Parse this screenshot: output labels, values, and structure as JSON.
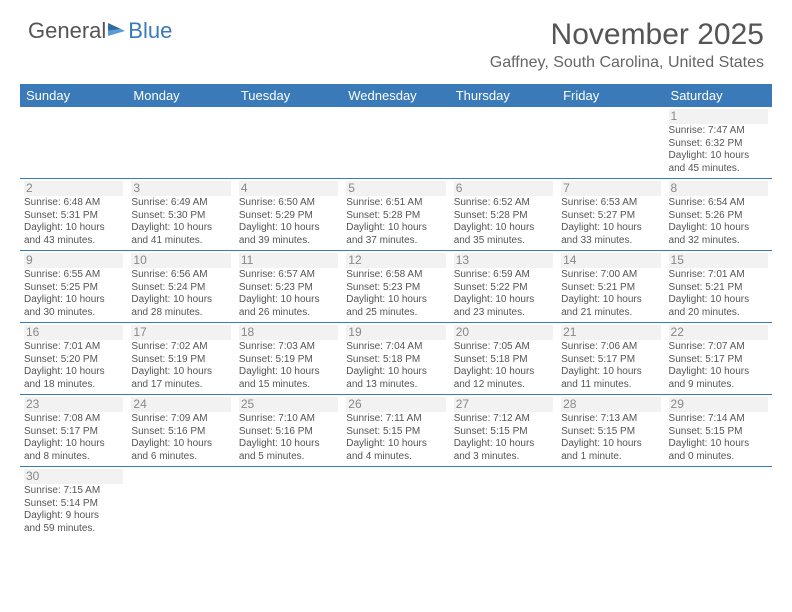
{
  "logo": {
    "part1": "General",
    "part2": "Blue"
  },
  "title": "November 2025",
  "location": "Gaffney, South Carolina, United States",
  "colors": {
    "header_bg": "#3a7ab8",
    "text": "#555555",
    "divider": "#3a7ab8"
  },
  "day_headers": [
    "Sunday",
    "Monday",
    "Tuesday",
    "Wednesday",
    "Thursday",
    "Friday",
    "Saturday"
  ],
  "weeks": [
    [
      null,
      null,
      null,
      null,
      null,
      null,
      {
        "n": "1",
        "sr": "Sunrise: 7:47 AM",
        "ss": "Sunset: 6:32 PM",
        "dl1": "Daylight: 10 hours",
        "dl2": "and 45 minutes."
      }
    ],
    [
      {
        "n": "2",
        "sr": "Sunrise: 6:48 AM",
        "ss": "Sunset: 5:31 PM",
        "dl1": "Daylight: 10 hours",
        "dl2": "and 43 minutes."
      },
      {
        "n": "3",
        "sr": "Sunrise: 6:49 AM",
        "ss": "Sunset: 5:30 PM",
        "dl1": "Daylight: 10 hours",
        "dl2": "and 41 minutes."
      },
      {
        "n": "4",
        "sr": "Sunrise: 6:50 AM",
        "ss": "Sunset: 5:29 PM",
        "dl1": "Daylight: 10 hours",
        "dl2": "and 39 minutes."
      },
      {
        "n": "5",
        "sr": "Sunrise: 6:51 AM",
        "ss": "Sunset: 5:28 PM",
        "dl1": "Daylight: 10 hours",
        "dl2": "and 37 minutes."
      },
      {
        "n": "6",
        "sr": "Sunrise: 6:52 AM",
        "ss": "Sunset: 5:28 PM",
        "dl1": "Daylight: 10 hours",
        "dl2": "and 35 minutes."
      },
      {
        "n": "7",
        "sr": "Sunrise: 6:53 AM",
        "ss": "Sunset: 5:27 PM",
        "dl1": "Daylight: 10 hours",
        "dl2": "and 33 minutes."
      },
      {
        "n": "8",
        "sr": "Sunrise: 6:54 AM",
        "ss": "Sunset: 5:26 PM",
        "dl1": "Daylight: 10 hours",
        "dl2": "and 32 minutes."
      }
    ],
    [
      {
        "n": "9",
        "sr": "Sunrise: 6:55 AM",
        "ss": "Sunset: 5:25 PM",
        "dl1": "Daylight: 10 hours",
        "dl2": "and 30 minutes."
      },
      {
        "n": "10",
        "sr": "Sunrise: 6:56 AM",
        "ss": "Sunset: 5:24 PM",
        "dl1": "Daylight: 10 hours",
        "dl2": "and 28 minutes."
      },
      {
        "n": "11",
        "sr": "Sunrise: 6:57 AM",
        "ss": "Sunset: 5:23 PM",
        "dl1": "Daylight: 10 hours",
        "dl2": "and 26 minutes."
      },
      {
        "n": "12",
        "sr": "Sunrise: 6:58 AM",
        "ss": "Sunset: 5:23 PM",
        "dl1": "Daylight: 10 hours",
        "dl2": "and 25 minutes."
      },
      {
        "n": "13",
        "sr": "Sunrise: 6:59 AM",
        "ss": "Sunset: 5:22 PM",
        "dl1": "Daylight: 10 hours",
        "dl2": "and 23 minutes."
      },
      {
        "n": "14",
        "sr": "Sunrise: 7:00 AM",
        "ss": "Sunset: 5:21 PM",
        "dl1": "Daylight: 10 hours",
        "dl2": "and 21 minutes."
      },
      {
        "n": "15",
        "sr": "Sunrise: 7:01 AM",
        "ss": "Sunset: 5:21 PM",
        "dl1": "Daylight: 10 hours",
        "dl2": "and 20 minutes."
      }
    ],
    [
      {
        "n": "16",
        "sr": "Sunrise: 7:01 AM",
        "ss": "Sunset: 5:20 PM",
        "dl1": "Daylight: 10 hours",
        "dl2": "and 18 minutes."
      },
      {
        "n": "17",
        "sr": "Sunrise: 7:02 AM",
        "ss": "Sunset: 5:19 PM",
        "dl1": "Daylight: 10 hours",
        "dl2": "and 17 minutes."
      },
      {
        "n": "18",
        "sr": "Sunrise: 7:03 AM",
        "ss": "Sunset: 5:19 PM",
        "dl1": "Daylight: 10 hours",
        "dl2": "and 15 minutes."
      },
      {
        "n": "19",
        "sr": "Sunrise: 7:04 AM",
        "ss": "Sunset: 5:18 PM",
        "dl1": "Daylight: 10 hours",
        "dl2": "and 13 minutes."
      },
      {
        "n": "20",
        "sr": "Sunrise: 7:05 AM",
        "ss": "Sunset: 5:18 PM",
        "dl1": "Daylight: 10 hours",
        "dl2": "and 12 minutes."
      },
      {
        "n": "21",
        "sr": "Sunrise: 7:06 AM",
        "ss": "Sunset: 5:17 PM",
        "dl1": "Daylight: 10 hours",
        "dl2": "and 11 minutes."
      },
      {
        "n": "22",
        "sr": "Sunrise: 7:07 AM",
        "ss": "Sunset: 5:17 PM",
        "dl1": "Daylight: 10 hours",
        "dl2": "and 9 minutes."
      }
    ],
    [
      {
        "n": "23",
        "sr": "Sunrise: 7:08 AM",
        "ss": "Sunset: 5:17 PM",
        "dl1": "Daylight: 10 hours",
        "dl2": "and 8 minutes."
      },
      {
        "n": "24",
        "sr": "Sunrise: 7:09 AM",
        "ss": "Sunset: 5:16 PM",
        "dl1": "Daylight: 10 hours",
        "dl2": "and 6 minutes."
      },
      {
        "n": "25",
        "sr": "Sunrise: 7:10 AM",
        "ss": "Sunset: 5:16 PM",
        "dl1": "Daylight: 10 hours",
        "dl2": "and 5 minutes."
      },
      {
        "n": "26",
        "sr": "Sunrise: 7:11 AM",
        "ss": "Sunset: 5:15 PM",
        "dl1": "Daylight: 10 hours",
        "dl2": "and 4 minutes."
      },
      {
        "n": "27",
        "sr": "Sunrise: 7:12 AM",
        "ss": "Sunset: 5:15 PM",
        "dl1": "Daylight: 10 hours",
        "dl2": "and 3 minutes."
      },
      {
        "n": "28",
        "sr": "Sunrise: 7:13 AM",
        "ss": "Sunset: 5:15 PM",
        "dl1": "Daylight: 10 hours",
        "dl2": "and 1 minute."
      },
      {
        "n": "29",
        "sr": "Sunrise: 7:14 AM",
        "ss": "Sunset: 5:15 PM",
        "dl1": "Daylight: 10 hours",
        "dl2": "and 0 minutes."
      }
    ],
    [
      {
        "n": "30",
        "sr": "Sunrise: 7:15 AM",
        "ss": "Sunset: 5:14 PM",
        "dl1": "Daylight: 9 hours",
        "dl2": "and 59 minutes."
      },
      null,
      null,
      null,
      null,
      null,
      null
    ]
  ]
}
